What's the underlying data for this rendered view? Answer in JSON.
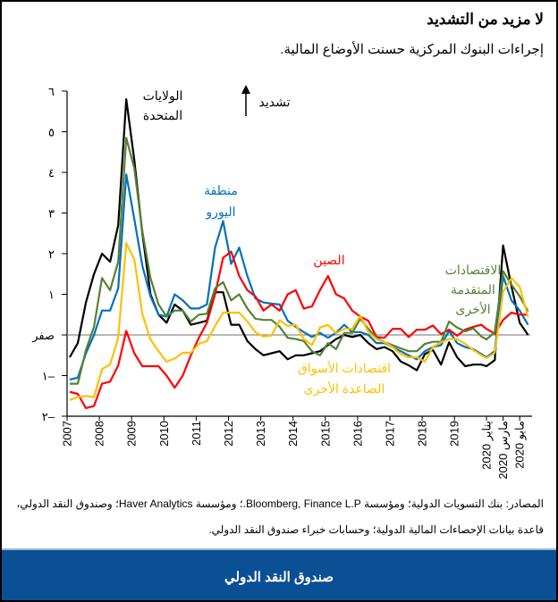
{
  "title": "لا مزيد من التشديد",
  "subtitle": "إجراءات البنوك المركزية حسنت الأوضاع المالية.",
  "sources": "المصادر: بنك التسويات الدولية؛ ومؤسسة Bloomberg, Finance L.P.؛ ومؤسسة Haver Analytics؛ وصندوق النقد الدولي، قاعدة بيانات الإحصاءات المالية الدولية؛ وحسابات خبراء صندوق النقد الدولي.",
  "footer": "صندوق النقد الدولي",
  "chart_data": {
    "type": "line",
    "ylim": [
      -2,
      6
    ],
    "y_ticks": [
      {
        "v": 6,
        "label": "٦"
      },
      {
        "v": 5,
        "label": "٥"
      },
      {
        "v": 4,
        "label": "٤"
      },
      {
        "v": 3,
        "label": "٣"
      },
      {
        "v": 2,
        "label": "٢"
      },
      {
        "v": 1,
        "label": "١"
      },
      {
        "v": 0,
        "label": "صفر"
      },
      {
        "v": -1,
        "label": "١–"
      },
      {
        "v": -2,
        "label": "٢–"
      }
    ],
    "x_ticks": [
      {
        "date": "2007-01",
        "label": "2007"
      },
      {
        "date": "2008-01",
        "label": "2008"
      },
      {
        "date": "2009-01",
        "label": "2009"
      },
      {
        "date": "2010-01",
        "label": "2010"
      },
      {
        "date": "2011-01",
        "label": "2011"
      },
      {
        "date": "2012-01",
        "label": "2012"
      },
      {
        "date": "2013-01",
        "label": "2013"
      },
      {
        "date": "2014-01",
        "label": "2014"
      },
      {
        "date": "2015-01",
        "label": "2015"
      },
      {
        "date": "2016-01",
        "label": "2016"
      },
      {
        "date": "2017-01",
        "label": "2017"
      },
      {
        "date": "2018-01",
        "label": "2018"
      },
      {
        "date": "2019-01",
        "label": "2019"
      },
      {
        "date": "2020-01",
        "label": "يناير 2020"
      },
      {
        "date": "2020-03",
        "label": "مارس 2020"
      },
      {
        "date": "2020-05",
        "label": "مايو 2020"
      }
    ],
    "zero_line": true,
    "annotation": {
      "text": "تشديد",
      "icon": "arrow-up-icon"
    },
    "x": [
      "2007-02",
      "2007-05",
      "2007-08",
      "2007-11",
      "2008-02",
      "2008-05",
      "2008-08",
      "2008-11",
      "2009-02",
      "2009-05",
      "2009-08",
      "2009-11",
      "2010-02",
      "2010-05",
      "2010-08",
      "2010-11",
      "2011-02",
      "2011-05",
      "2011-08",
      "2011-11",
      "2012-02",
      "2012-05",
      "2012-08",
      "2012-11",
      "2013-02",
      "2013-05",
      "2013-08",
      "2013-11",
      "2014-02",
      "2014-05",
      "2014-08",
      "2014-11",
      "2015-02",
      "2015-05",
      "2015-08",
      "2015-11",
      "2016-02",
      "2016-05",
      "2016-08",
      "2016-11",
      "2017-02",
      "2017-05",
      "2017-08",
      "2017-11",
      "2018-02",
      "2018-05",
      "2018-08",
      "2018-11",
      "2019-02",
      "2019-05",
      "2019-08",
      "2019-11",
      "2020-01",
      "2020-02",
      "2020-03",
      "2020-04",
      "2020-05",
      "2020-06"
    ],
    "series": [
      {
        "name": "الولايات المتحدة",
        "label_lines": [
          "الولايات",
          "المتحدة"
        ],
        "color": "#000000",
        "values": [
          -0.55,
          -0.2,
          0.8,
          1.5,
          2.0,
          1.8,
          2.7,
          5.8,
          4.3,
          2.5,
          1.0,
          0.5,
          0.3,
          0.75,
          0.6,
          0.25,
          0.3,
          0.35,
          1.05,
          1.05,
          0.25,
          0.25,
          -0.15,
          -0.35,
          -0.5,
          -0.45,
          -0.4,
          -0.6,
          -0.5,
          -0.5,
          -0.45,
          -0.4,
          -0.25,
          -0.1,
          0.0,
          -0.05,
          0.0,
          -0.2,
          -0.35,
          -0.3,
          -0.4,
          -0.65,
          -0.75,
          -0.87,
          -0.47,
          -0.37,
          -0.73,
          -0.18,
          -0.55,
          -0.77,
          -0.73,
          -0.73,
          -0.77,
          -0.62,
          2.2,
          1.2,
          0.3,
          0.0
        ]
      },
      {
        "name": "منطقة اليورو",
        "label_lines": [
          "منطقة",
          "اليورو"
        ],
        "color": "#0070c0",
        "values": [
          -1.1,
          -1.05,
          -0.45,
          0.0,
          0.6,
          0.6,
          1.15,
          3.95,
          2.85,
          1.7,
          0.95,
          0.5,
          0.45,
          1.0,
          0.85,
          0.65,
          0.65,
          0.75,
          2.15,
          2.8,
          1.75,
          2.15,
          1.45,
          0.9,
          0.8,
          0.77,
          0.75,
          0.35,
          0.2,
          0.07,
          -0.05,
          0.05,
          -0.07,
          0.05,
          0.25,
          0.07,
          0.07,
          0.0,
          -0.2,
          -0.2,
          -0.3,
          -0.4,
          -0.5,
          -0.6,
          -0.4,
          -0.3,
          -0.25,
          0.1,
          -0.2,
          -0.3,
          -0.35,
          -0.47,
          -0.55,
          -0.4,
          1.45,
          0.85,
          0.6,
          0.25
        ]
      },
      {
        "name": "الصين",
        "label_lines": [
          "الصين"
        ],
        "color": "#ff0000",
        "values": [
          -1.4,
          -1.45,
          -1.8,
          -1.75,
          -1.2,
          -1.15,
          -0.75,
          0.1,
          -0.45,
          -0.77,
          -0.77,
          -0.77,
          -1.0,
          -1.3,
          -1.0,
          -0.5,
          -0.07,
          0.3,
          1.0,
          1.9,
          2.05,
          1.45,
          1.1,
          0.95,
          0.6,
          0.75,
          0.6,
          1.0,
          1.1,
          0.65,
          0.7,
          1.1,
          1.45,
          1.0,
          0.9,
          0.6,
          0.45,
          0.35,
          -0.05,
          -0.07,
          0.15,
          0.15,
          -0.05,
          0.13,
          0.13,
          0.23,
          0.02,
          0.13,
          -0.02,
          0.13,
          0.2,
          0.25,
          0.15,
          0.03,
          0.37,
          0.55,
          0.5,
          0.5
        ]
      },
      {
        "name": "الاقتصادات المتقدمة الأخرى",
        "label_lines": [
          "الاقتصادات",
          "المتقدمة",
          "الأخرى"
        ],
        "color": "#548235",
        "values": [
          -1.2,
          -1.2,
          -0.37,
          0.2,
          1.4,
          1.1,
          1.8,
          4.85,
          4.1,
          2.55,
          1.4,
          0.75,
          0.45,
          0.6,
          0.6,
          0.33,
          0.5,
          0.52,
          1.15,
          1.3,
          0.85,
          1.0,
          0.65,
          0.4,
          0.37,
          0.37,
          0.2,
          -0.07,
          -0.1,
          -0.15,
          -0.4,
          -0.5,
          -0.2,
          -0.35,
          0.05,
          0.05,
          0.4,
          0.15,
          -0.07,
          -0.18,
          -0.25,
          -0.33,
          -0.4,
          -0.4,
          -0.22,
          -0.17,
          -0.17,
          0.33,
          0.18,
          0.09,
          0.16,
          -0.04,
          -0.11,
          0.07,
          1.57,
          1.24,
          0.95,
          0.58
        ]
      },
      {
        "name": "اقتصادات الأسواق الصاعدة الأخرى",
        "label_lines": [
          "اقتصادات الأسواق",
          "الصاعدة الأخرى"
        ],
        "color": "#ffc000",
        "values": [
          -1.6,
          -1.53,
          -1.5,
          -1.53,
          -0.84,
          -0.73,
          -0.07,
          2.26,
          1.86,
          0.51,
          -0.11,
          -0.4,
          -0.66,
          -0.58,
          -0.44,
          -0.44,
          -0.22,
          -0.15,
          0.22,
          0.55,
          0.55,
          0.55,
          0.33,
          0.07,
          -0.04,
          -0.01,
          0.36,
          0.22,
          0.25,
          -0.1,
          -0.25,
          0.18,
          0.25,
          0.04,
          0.15,
          0.15,
          0.47,
          0.07,
          -0.1,
          -0.18,
          -0.3,
          -0.47,
          -0.55,
          -0.55,
          -0.66,
          -0.3,
          -0.18,
          -0.1,
          -0.1,
          -0.22,
          -0.37,
          -0.5,
          -0.57,
          -0.44,
          1.06,
          1.4,
          1.18,
          0.44
        ]
      }
    ]
  }
}
